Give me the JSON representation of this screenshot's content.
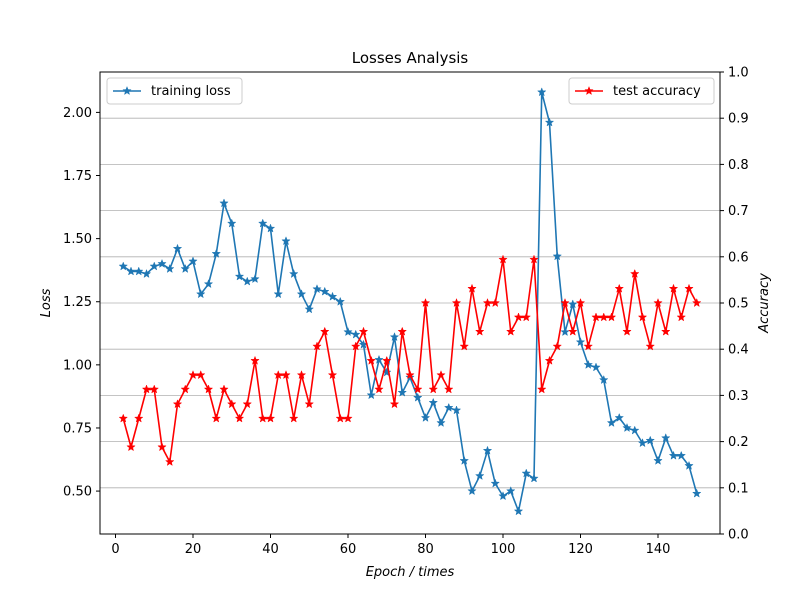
{
  "chart_data": {
    "type": "line",
    "title": "Losses Analysis",
    "xlabel": "Epoch / times",
    "ylabel_left": "Loss",
    "ylabel_right": "Accuracy",
    "xlim": [
      -4,
      156
    ],
    "ylim_left": [
      0.33,
      2.16
    ],
    "ylim_right": [
      0.0,
      1.0
    ],
    "x_ticks": [
      0,
      20,
      40,
      60,
      80,
      100,
      120,
      140
    ],
    "y_left_ticks": [
      0.5,
      0.75,
      1.0,
      1.25,
      1.5,
      1.75,
      2.0
    ],
    "y_right_ticks": [
      0.0,
      0.1,
      0.2,
      0.3,
      0.4,
      0.5,
      0.6,
      0.7,
      0.8,
      0.9,
      1.0
    ],
    "grid": "horizontal lines at right-axis ticks",
    "series": [
      {
        "name": "training loss",
        "axis": "left",
        "color": "#1f77b4",
        "marker": "star",
        "x": [
          2,
          4,
          6,
          8,
          10,
          12,
          14,
          16,
          18,
          20,
          22,
          24,
          26,
          28,
          30,
          32,
          34,
          36,
          38,
          40,
          42,
          44,
          46,
          48,
          50,
          52,
          54,
          56,
          58,
          60,
          62,
          64,
          66,
          68,
          70,
          72,
          74,
          76,
          78,
          80,
          82,
          84,
          86,
          88,
          90,
          92,
          94,
          96,
          98,
          100,
          102,
          104,
          106,
          108,
          110,
          112,
          114,
          116,
          118,
          120,
          122,
          124,
          126,
          128,
          130,
          132,
          134,
          136,
          138,
          140,
          142,
          144,
          146,
          148,
          150
        ],
        "y": [
          1.39,
          1.37,
          1.37,
          1.36,
          1.39,
          1.4,
          1.38,
          1.46,
          1.38,
          1.41,
          1.28,
          1.32,
          1.44,
          1.64,
          1.56,
          1.35,
          1.33,
          1.34,
          1.56,
          1.54,
          1.28,
          1.49,
          1.36,
          1.28,
          1.22,
          1.3,
          1.29,
          1.27,
          1.25,
          1.13,
          1.12,
          1.08,
          0.88,
          1.02,
          0.97,
          1.11,
          0.89,
          0.95,
          0.87,
          0.79,
          0.85,
          0.77,
          0.83,
          0.82,
          0.62,
          0.5,
          0.56,
          0.66,
          0.53,
          0.48,
          0.5,
          0.42,
          0.57,
          0.55,
          2.08,
          1.96,
          1.43,
          1.13,
          1.24,
          1.09,
          1.0,
          0.99,
          0.94,
          0.77,
          0.79,
          0.75,
          0.74,
          0.69,
          0.7,
          0.62,
          0.71,
          0.64,
          0.64,
          0.6,
          0.49
        ]
      },
      {
        "name": "test accuracy",
        "axis": "right",
        "color": "#ff0000",
        "marker": "star",
        "x": [
          2,
          4,
          6,
          8,
          10,
          12,
          14,
          16,
          18,
          20,
          22,
          24,
          26,
          28,
          30,
          32,
          34,
          36,
          38,
          40,
          42,
          44,
          46,
          48,
          50,
          52,
          54,
          56,
          58,
          60,
          62,
          64,
          66,
          68,
          70,
          72,
          74,
          76,
          78,
          80,
          82,
          84,
          86,
          88,
          90,
          92,
          94,
          96,
          98,
          100,
          102,
          104,
          106,
          108,
          110,
          112,
          114,
          116,
          118,
          120,
          122,
          124,
          126,
          128,
          130,
          132,
          134,
          136,
          138,
          140,
          142,
          144,
          146,
          148,
          150
        ],
        "y": [
          0.25,
          0.188,
          0.25,
          0.313,
          0.313,
          0.188,
          0.156,
          0.281,
          0.313,
          0.344,
          0.344,
          0.313,
          0.25,
          0.313,
          0.281,
          0.25,
          0.281,
          0.375,
          0.25,
          0.25,
          0.344,
          0.344,
          0.25,
          0.344,
          0.281,
          0.406,
          0.438,
          0.344,
          0.25,
          0.25,
          0.406,
          0.438,
          0.375,
          0.313,
          0.375,
          0.281,
          0.438,
          0.344,
          0.313,
          0.5,
          0.313,
          0.344,
          0.313,
          0.5,
          0.406,
          0.531,
          0.438,
          0.5,
          0.5,
          0.594,
          0.438,
          0.469,
          0.469,
          0.594,
          0.313,
          0.375,
          0.406,
          0.5,
          0.438,
          0.5,
          0.406,
          0.469,
          0.469,
          0.469,
          0.531,
          0.438,
          0.563,
          0.469,
          0.406,
          0.5,
          0.438,
          0.531,
          0.469,
          0.531,
          0.5
        ]
      }
    ],
    "legend": [
      {
        "label": "training loss",
        "placement": "upper left"
      },
      {
        "label": "test accuracy",
        "placement": "upper right"
      }
    ]
  }
}
